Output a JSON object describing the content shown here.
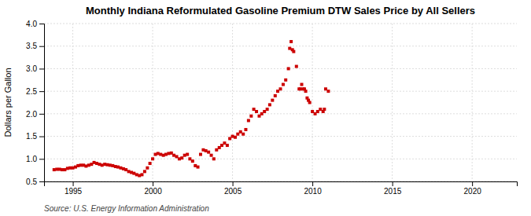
{
  "chart_data": {
    "type": "scatter",
    "title": "Monthly Indiana Reformulated Gasoline Premium DTW Sales Price by All Sellers",
    "ylabel": "Dollars per Gallon",
    "source": "Source: U.S. Energy Information Administration",
    "color": "#cc0000",
    "marker": "square",
    "grid": true,
    "xlim": [
      1993.2,
      2022.8
    ],
    "xticks": [
      1995,
      2000,
      2005,
      2010,
      2015,
      2020
    ],
    "ylim": [
      0.5,
      4.0
    ],
    "yticks": [
      0.5,
      {
        "value": 1.0,
        "label": "1.0"
      },
      1.5,
      {
        "value": 2.0,
        "label": "2.0"
      },
      2.5,
      {
        "value": 3.0,
        "label": "3.0"
      },
      3.5,
      {
        "value": 4.0,
        "label": "4.0"
      }
    ],
    "x": [
      1993.83,
      1994.0,
      1994.17,
      1994.33,
      1994.5,
      1994.67,
      1994.83,
      1995.0,
      1995.17,
      1995.33,
      1995.5,
      1995.67,
      1995.83,
      1996.0,
      1996.17,
      1996.33,
      1996.5,
      1996.67,
      1996.83,
      1997.0,
      1997.17,
      1997.33,
      1997.5,
      1997.67,
      1997.83,
      1998.0,
      1998.17,
      1998.33,
      1998.5,
      1998.67,
      1998.83,
      1999.0,
      1999.17,
      1999.33,
      1999.5,
      1999.67,
      1999.83,
      2000.0,
      2000.17,
      2000.33,
      2000.5,
      2000.67,
      2000.83,
      2001.0,
      2001.17,
      2001.33,
      2001.5,
      2001.67,
      2001.83,
      2002.0,
      2002.17,
      2002.33,
      2002.5,
      2002.67,
      2002.83,
      2003.0,
      2003.17,
      2003.33,
      2003.5,
      2003.67,
      2003.83,
      2004.0,
      2004.17,
      2004.33,
      2004.5,
      2004.67,
      2004.83,
      2005.0,
      2005.17,
      2005.33,
      2005.5,
      2005.67,
      2005.83,
      2006.0,
      2006.17,
      2006.33,
      2006.5,
      2006.67,
      2006.83,
      2007.0,
      2007.17,
      2007.33,
      2007.5,
      2007.67,
      2007.83,
      2008.0,
      2008.17,
      2008.33,
      2008.5,
      2008.58,
      2008.67,
      2008.75,
      2008.83,
      2009.0,
      2009.17,
      2009.25,
      2009.33,
      2009.42,
      2009.5,
      2009.58,
      2009.67,
      2009.75,
      2009.83,
      2010.0,
      2010.17,
      2010.33,
      2010.5,
      2010.67,
      2010.75,
      2010.83,
      2011.0
    ],
    "values": [
      0.76,
      0.77,
      0.77,
      0.76,
      0.76,
      0.79,
      0.8,
      0.8,
      0.82,
      0.85,
      0.86,
      0.86,
      0.84,
      0.86,
      0.88,
      0.92,
      0.9,
      0.88,
      0.86,
      0.88,
      0.87,
      0.86,
      0.85,
      0.83,
      0.82,
      0.8,
      0.78,
      0.76,
      0.72,
      0.7,
      0.68,
      0.65,
      0.63,
      0.65,
      0.72,
      0.8,
      0.9,
      1.0,
      1.1,
      1.12,
      1.1,
      1.08,
      1.1,
      1.12,
      1.13,
      1.08,
      1.05,
      1.0,
      1.02,
      1.08,
      1.1,
      1.0,
      0.95,
      0.85,
      0.82,
      1.1,
      1.2,
      1.18,
      1.15,
      1.08,
      1.0,
      1.2,
      1.25,
      1.3,
      1.35,
      1.3,
      1.45,
      1.5,
      1.48,
      1.55,
      1.6,
      1.55,
      1.65,
      1.85,
      1.95,
      2.1,
      2.05,
      1.95,
      2.0,
      2.05,
      2.1,
      2.2,
      2.3,
      2.4,
      2.5,
      2.55,
      2.65,
      2.75,
      3.0,
      3.45,
      3.6,
      3.42,
      3.38,
      3.05,
      2.55,
      2.55,
      2.65,
      2.55,
      2.55,
      2.5,
      2.35,
      2.3,
      2.25,
      2.05,
      2.0,
      2.05,
      2.1,
      2.05,
      2.1,
      2.55,
      2.5
    ]
  }
}
